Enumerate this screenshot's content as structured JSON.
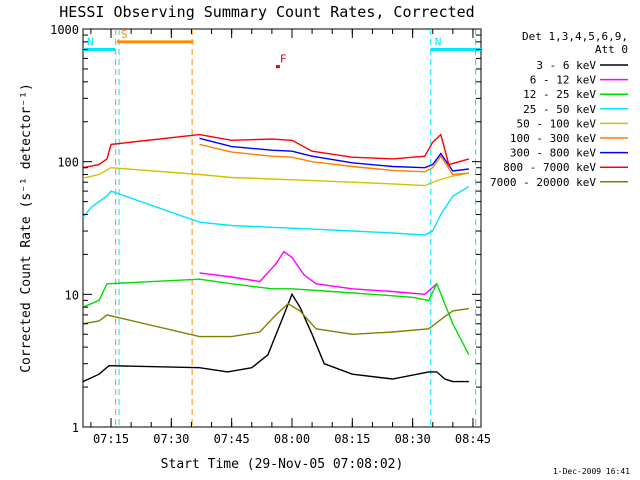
{
  "chart_data": {
    "type": "line",
    "title": "HESSI Observing Summary Count Rates, Corrected",
    "xlabel": "Start Time (29-Nov-05 07:08:02)",
    "ylabel": "Corrected Count Rate (s⁻¹ detector⁻¹)",
    "yscale": "log",
    "ylim": [
      1,
      1000
    ],
    "xlim": [
      "07:08:02",
      "08:47:00"
    ],
    "x_ticks": [
      "07:15",
      "07:30",
      "07:45",
      "08:00",
      "08:15",
      "08:30",
      "08:45"
    ],
    "y_ticks": [
      "1",
      "10",
      "100",
      "1000"
    ],
    "grid": false,
    "legend_position": "right",
    "legend_header": [
      "Det 1,3,4,5,6,9,",
      "Att 0"
    ],
    "footer_date": "1-Dec-2009 16:41",
    "flags": [
      {
        "label": "S",
        "color": "#ff8c00",
        "start": "07:16:30",
        "end": "07:35:30",
        "level": 800
      },
      {
        "label": "N",
        "color": "#00e5ff",
        "start": "07:08:02",
        "end": "07:16:00",
        "level": 700
      },
      {
        "label": "N",
        "color": "#00e5ff",
        "start": "08:34:30",
        "end": "08:47:00",
        "level": 700
      },
      {
        "label": "F",
        "color": "#e00000",
        "start": "07:56:00",
        "end": "07:57:00",
        "level": 520
      }
    ],
    "vertical_markers": [
      {
        "time": "07:16:10",
        "color": "#ff8c00"
      },
      {
        "time": "07:17:00",
        "color": "#00e5ff"
      },
      {
        "time": "07:35:10",
        "color": "#ff8c00"
      },
      {
        "time": "08:34:30",
        "color": "#00e5ff"
      },
      {
        "time": "08:45:40",
        "color": "#00e5ff"
      }
    ],
    "series": [
      {
        "name": "3 - 6 keV",
        "color": "#000000",
        "x": [
          "07:08:02",
          "07:12:00",
          "07:14:30",
          "07:37:00",
          "07:44:00",
          "07:50:00",
          "07:54:00",
          "07:58:00",
          "08:00:00",
          "08:02:00",
          "08:05:00",
          "08:08:00",
          "08:15:00",
          "08:25:00",
          "08:34:00",
          "08:36:00",
          "08:38:00",
          "08:40:00",
          "08:44:00"
        ],
        "y": [
          2.2,
          2.5,
          2.9,
          2.8,
          2.6,
          2.8,
          3.5,
          7,
          10,
          8,
          5,
          3,
          2.5,
          2.3,
          2.6,
          2.6,
          2.3,
          2.2,
          2.2
        ]
      },
      {
        "name": "6 - 12 keV",
        "color": "#ff00ff",
        "x": [
          "07:37:00",
          "07:45:00",
          "07:52:00",
          "07:56:00",
          "07:58:00",
          "08:00:00",
          "08:03:00",
          "08:06:00",
          "08:15:00",
          "08:25:00",
          "08:33:00",
          "08:36:00"
        ],
        "y": [
          14.5,
          13.5,
          12.5,
          17,
          21,
          19,
          14,
          12,
          11,
          10.5,
          10,
          12
        ]
      },
      {
        "name": "12 - 25 keV",
        "color": "#00dd00",
        "x": [
          "07:08:02",
          "07:12:00",
          "07:14:00",
          "07:37:00",
          "07:45:00",
          "07:55:00",
          "08:00:00",
          "08:10:00",
          "08:20:00",
          "08:30:00",
          "08:34:00",
          "08:36:00",
          "08:40:00",
          "08:44:00"
        ],
        "y": [
          8,
          9,
          12,
          13,
          12,
          11,
          11,
          10.5,
          10,
          9.5,
          9,
          12,
          6,
          3.5
        ]
      },
      {
        "name": "25 - 50 keV",
        "color": "#00e5ff",
        "x": [
          "07:08:02",
          "07:10:00",
          "07:12:00",
          "07:14:00",
          "07:15:00",
          "07:37:00",
          "07:45:00",
          "07:55:00",
          "08:05:00",
          "08:15:00",
          "08:25:00",
          "08:33:00",
          "08:35:00",
          "08:37:00",
          "08:40:00",
          "08:44:00"
        ],
        "y": [
          38,
          45,
          50,
          55,
          60,
          35,
          33,
          32,
          31,
          30,
          29,
          28,
          30,
          40,
          55,
          65
        ]
      },
      {
        "name": "50 - 100 keV",
        "color": "#d4c000",
        "x": [
          "07:08:02",
          "07:12:00",
          "07:15:00",
          "07:37:00",
          "07:45:00",
          "07:55:00",
          "08:05:00",
          "08:15:00",
          "08:25:00",
          "08:33:00",
          "08:36:00",
          "08:40:00",
          "08:44:00"
        ],
        "y": [
          75,
          80,
          90,
          80,
          76,
          74,
          72,
          70,
          68,
          66,
          72,
          78,
          82
        ]
      },
      {
        "name": "100 - 300 keV",
        "color": "#ff7f00",
        "x": [
          "07:37:00",
          "07:45:00",
          "07:55:00",
          "08:00:00",
          "08:05:00",
          "08:15:00",
          "08:25:00",
          "08:33:00",
          "08:35:00",
          "08:37:00",
          "08:40:00",
          "08:44:00"
        ],
        "y": [
          135,
          118,
          110,
          108,
          100,
          92,
          86,
          84,
          90,
          110,
          80,
          82
        ]
      },
      {
        "name": "300 - 800 keV",
        "color": "#0000ff",
        "x": [
          "07:37:00",
          "07:45:00",
          "07:55:00",
          "08:00:00",
          "08:05:00",
          "08:15:00",
          "08:25:00",
          "08:33:00",
          "08:35:00",
          "08:37:00",
          "08:40:00",
          "08:44:00"
        ],
        "y": [
          150,
          130,
          122,
          120,
          110,
          98,
          92,
          90,
          95,
          115,
          85,
          88
        ]
      },
      {
        "name": "800 - 7000 keV",
        "color": "#ff0000",
        "x": [
          "07:08:02",
          "07:12:00",
          "07:14:00",
          "07:15:00",
          "07:37:00",
          "07:45:00",
          "07:55:00",
          "08:00:00",
          "08:05:00",
          "08:15:00",
          "08:25:00",
          "08:33:00",
          "08:35:00",
          "08:37:00",
          "08:39:00",
          "08:44:00"
        ],
        "y": [
          90,
          95,
          105,
          135,
          160,
          145,
          148,
          145,
          120,
          108,
          105,
          110,
          140,
          160,
          95,
          105
        ]
      },
      {
        "name": "7000 - 20000 keV",
        "color": "#808000",
        "x": [
          "07:08:02",
          "07:12:00",
          "07:14:00",
          "07:37:00",
          "07:45:00",
          "07:52:00",
          "07:56:00",
          "07:59:00",
          "08:02:00",
          "08:06:00",
          "08:15:00",
          "08:25:00",
          "08:34:00",
          "08:38:00",
          "08:40:00",
          "08:44:00"
        ],
        "y": [
          6,
          6.3,
          7,
          4.8,
          4.8,
          5.2,
          7,
          8.5,
          7.5,
          5.5,
          5,
          5.2,
          5.5,
          6.8,
          7.5,
          7.8
        ]
      }
    ]
  }
}
